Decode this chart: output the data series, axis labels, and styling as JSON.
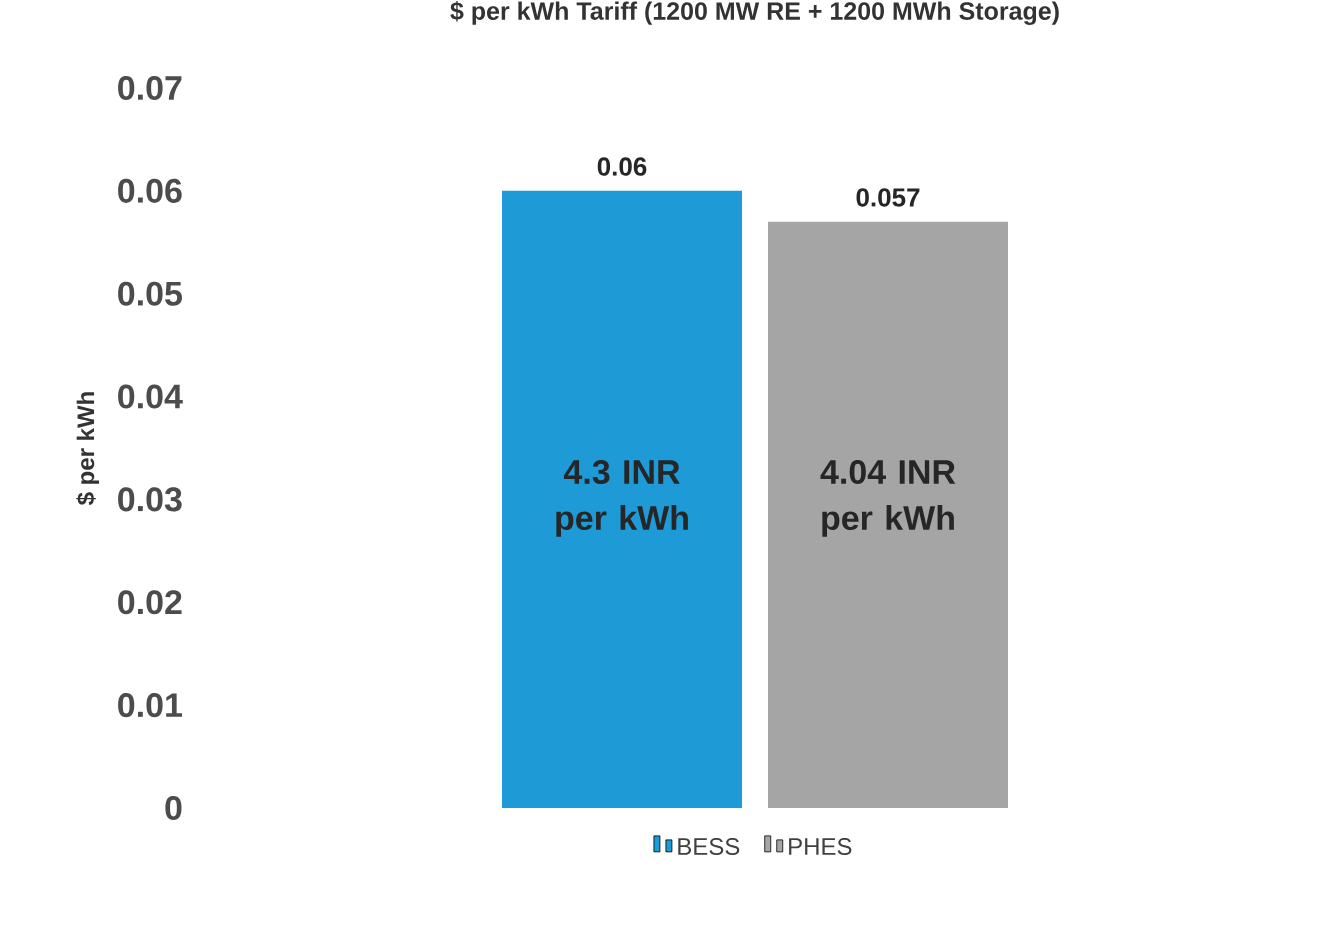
{
  "chart_data": {
    "type": "bar",
    "title": "$ per kWh Tariff (1200 MW RE + 1200 MWh Storage)",
    "ylabel": "$ per kWh",
    "categories": [
      null
    ],
    "series": [
      {
        "name": "BESS",
        "color": "#1e9ad6",
        "values": [
          0.06
        ]
      },
      {
        "name": "PHES",
        "color": "#a5a5a5",
        "values": [
          0.057
        ]
      }
    ],
    "ylim": [
      0,
      0.07
    ],
    "yticks": [
      0,
      0.01,
      0.02,
      0.03,
      0.04,
      0.05,
      0.06,
      0.07
    ],
    "data_labels": true,
    "legend": "bottom",
    "grid": false,
    "annotations": [
      "4.3 INR per kWh",
      "4.04 INR per kWh"
    ]
  }
}
